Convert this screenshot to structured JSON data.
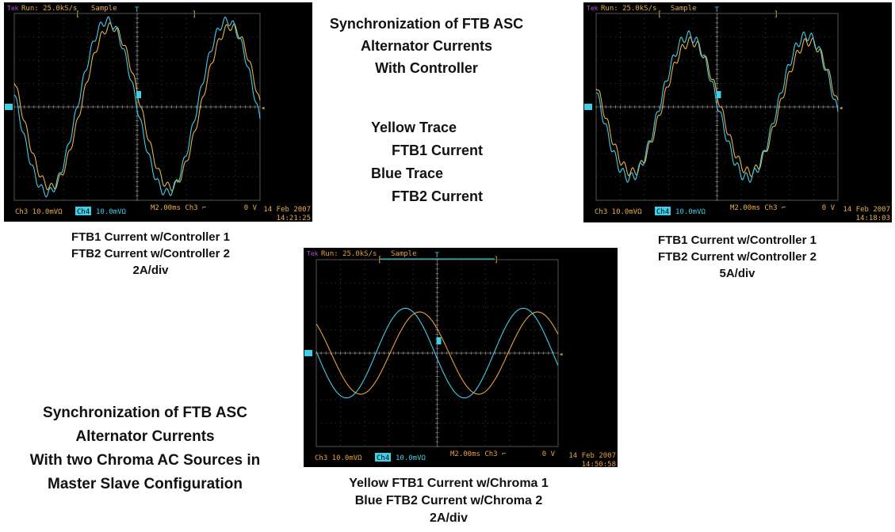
{
  "title_top": [
    "Synchronization of FTB ASC",
    "Alternator Currents",
    "With Controller"
  ],
  "legend": {
    "yellow_label": "Yellow Trace",
    "yellow_desc": "FTB1 Current",
    "blue_label": "Blue Trace",
    "blue_desc": "FTB2 Current"
  },
  "title_bottom": [
    "Synchronization of FTB ASC",
    "Alternator Currents",
    "With two Chroma AC Sources in",
    "Master Slave Configuration"
  ],
  "scopes": [
    {
      "run": "Run: 25.0kS/s",
      "mode": "Sample",
      "ch3": "Ch3  10.0mVΩ",
      "ch4": "Ch4",
      "ch4val": "10.0mVΩ",
      "timebase": "M2.00ms  Ch3  ⌐",
      "level": "0 V",
      "date": "14 Feb 2007",
      "time": "14:21:25",
      "caption": [
        "FTB1 Current w/Controller 1",
        "FTB2 Current w/Controller 2",
        "2A/div"
      ],
      "colors": {
        "yellow": "#e8b04a",
        "blue": "#3fd0e8"
      }
    },
    {
      "run": "Run: 25.0kS/s",
      "mode": "Sample",
      "ch3": "Ch3  10.0mVΩ",
      "ch4": "Ch4",
      "ch4val": "10.0mVΩ",
      "timebase": "M2.00ms  Ch3  ⌐",
      "level": "0 V",
      "date": "14 Feb 2007",
      "time": "14:18:03",
      "caption": [
        "FTB1 Current w/Controller 1",
        "FTB2 Current w/Controller 2",
        "5A/div"
      ],
      "colors": {
        "yellow": "#e8b04a",
        "blue": "#3fd0e8"
      }
    },
    {
      "run": "Run: 25.0kS/s",
      "mode": "Sample",
      "ch3": "Ch3  10.0mVΩ",
      "ch4": "Ch4",
      "ch4val": "10.0mVΩ",
      "timebase": "M2.00ms  Ch3  ⌐",
      "level": "0 V",
      "date": "14 Feb 2007",
      "time": "14:50:58",
      "caption": [
        "Yellow FTB1 Current w/Chroma 1",
        "Blue FTB2 Current w/Chroma 2",
        "2A/div"
      ],
      "colors": {
        "yellow": "#e8a040",
        "blue": "#3fd0e8"
      }
    }
  ]
}
